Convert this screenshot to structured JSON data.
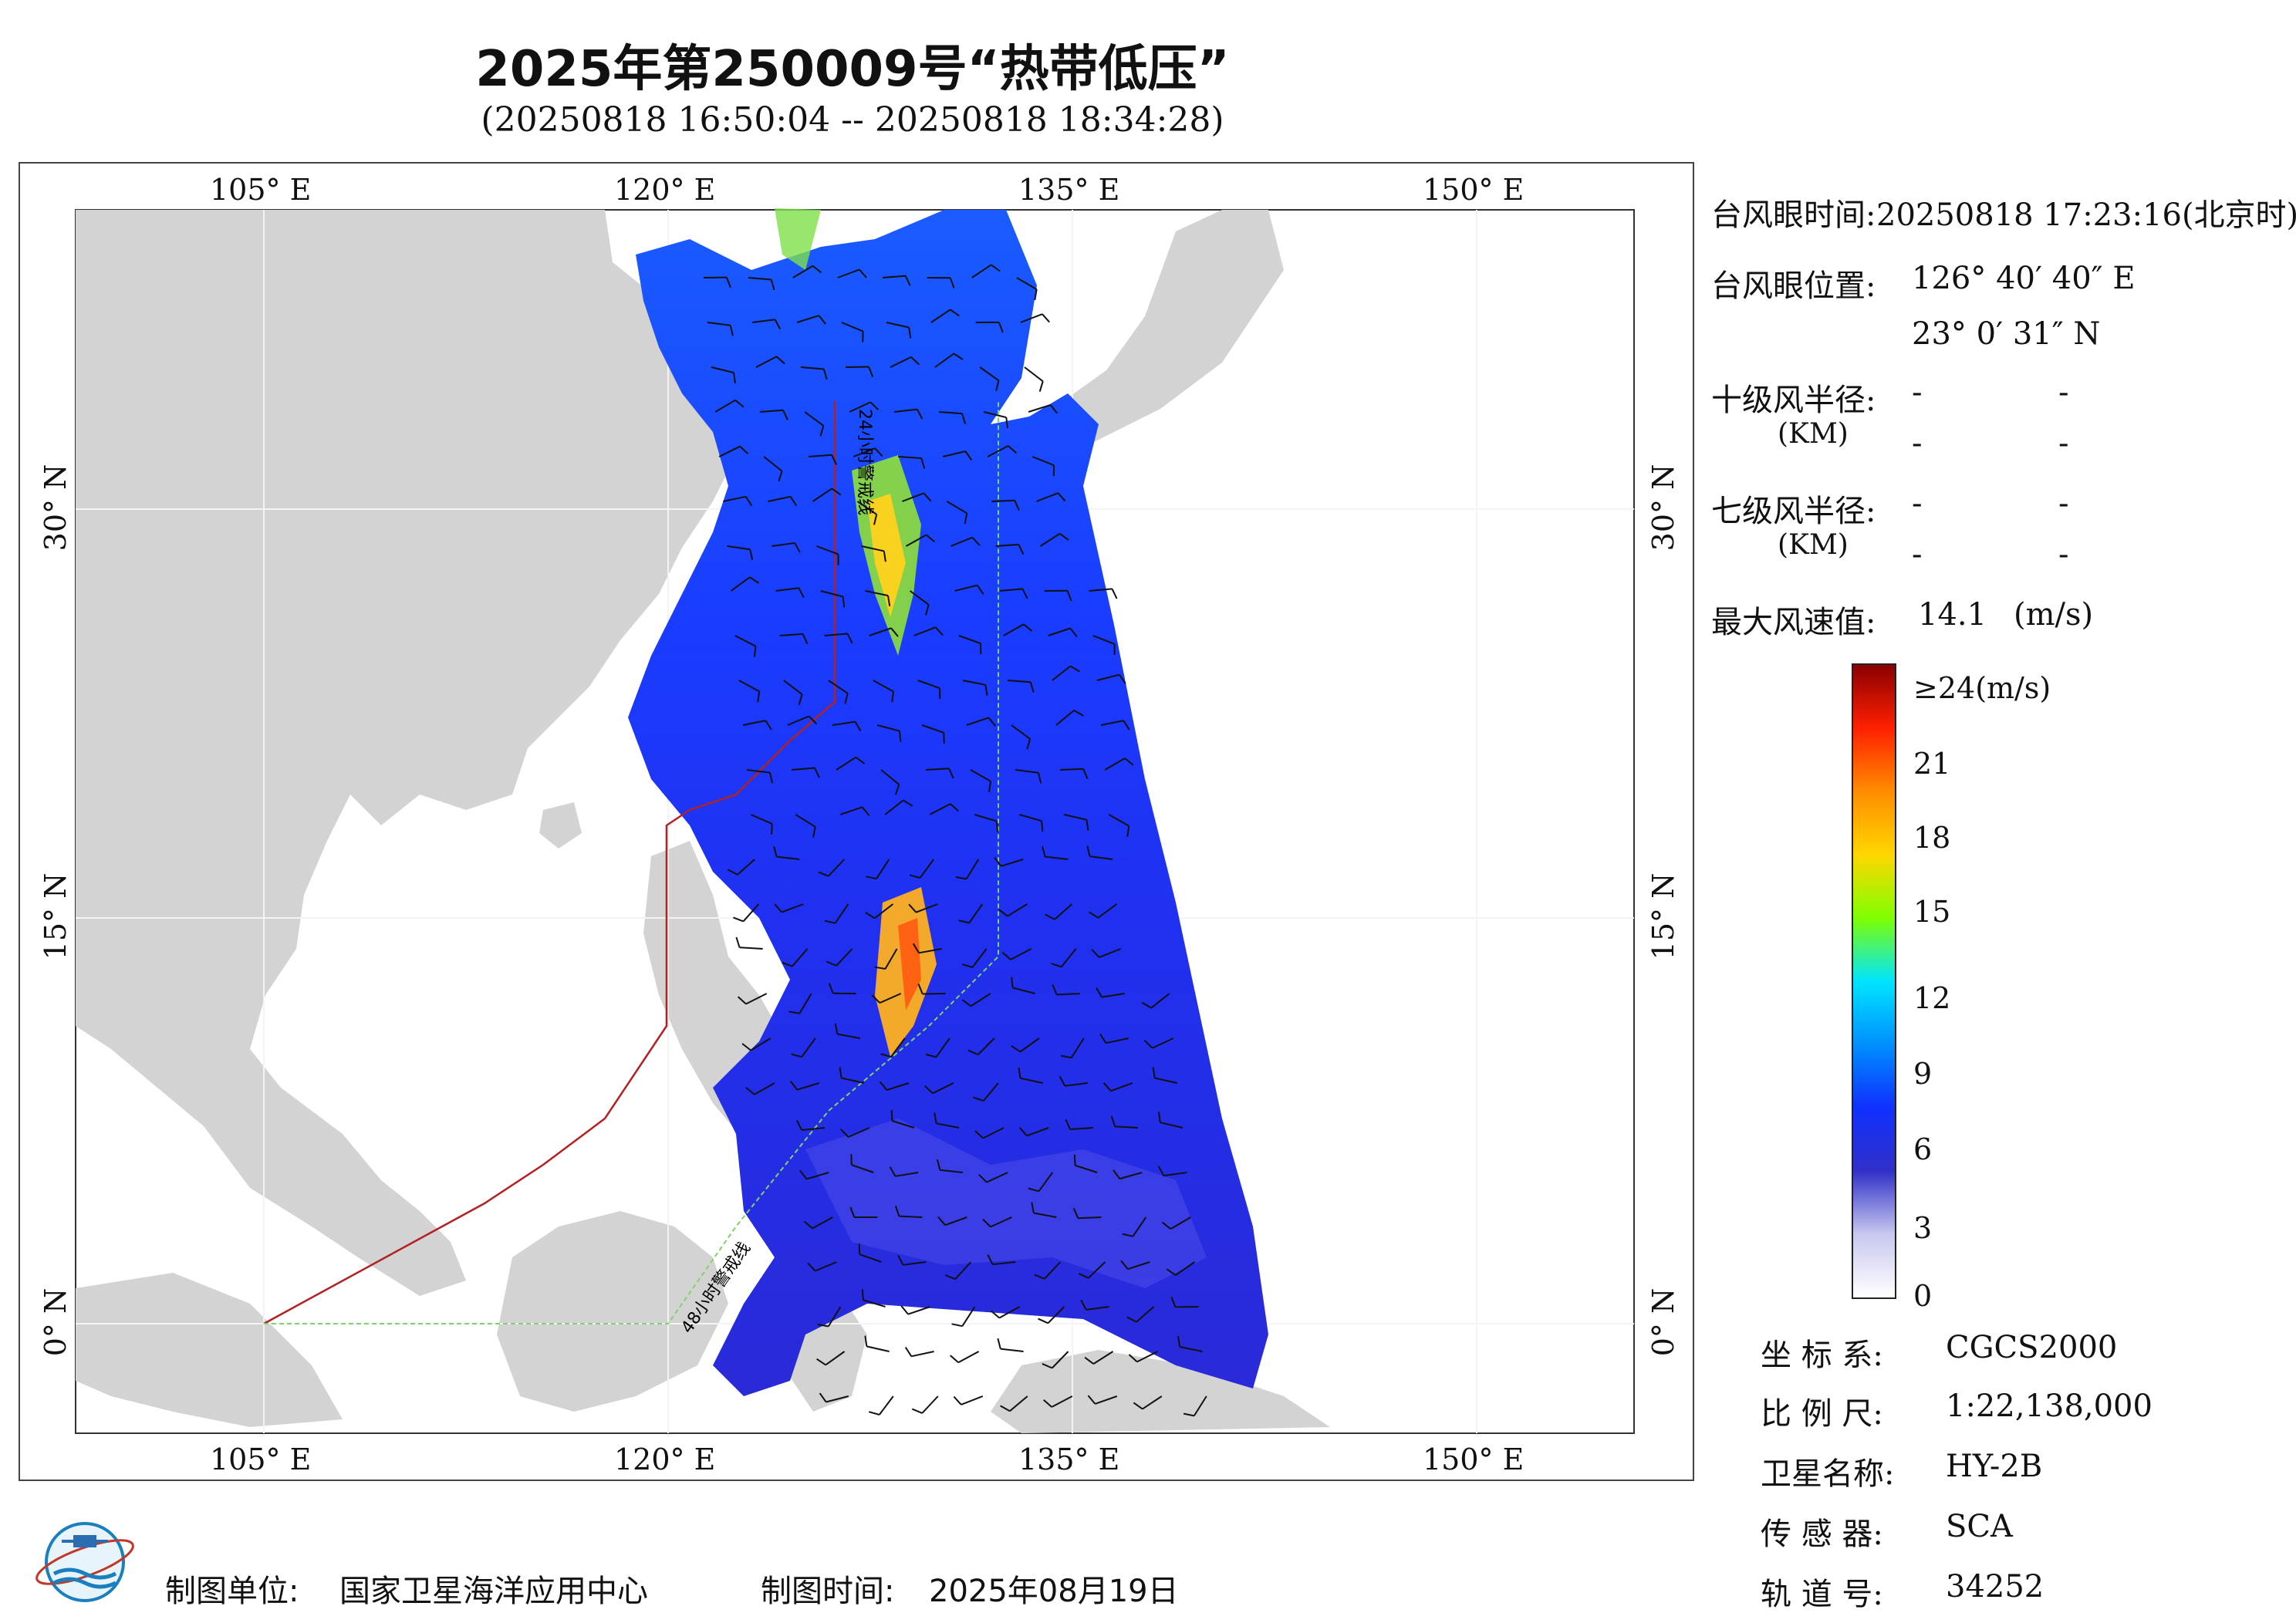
{
  "title": "2025年第250009号“热带低压”",
  "subtitle": "(20250818 16:50:04 -- 20250818 18:34:28)",
  "map": {
    "top_lon_labels": [
      "105° E",
      "120° E",
      "135° E",
      "150° E"
    ],
    "bottom_lon_labels": [
      "105° E",
      "120° E",
      "135° E",
      "150° E"
    ],
    "lat_labels": [
      "30° N",
      "15° N",
      "0° N"
    ],
    "line_24h_label": "24小时警戒线",
    "line_48h_label": "48小时警戒线",
    "line_24h_color": "#b22222",
    "line_48h_color": "#7ed36b"
  },
  "info": {
    "eye_time_label": "台风眼时间:",
    "eye_time_value": "20250818 17:23:16(北京时)",
    "eye_pos_label": "台风眼位置:",
    "eye_lon": "126° 40′ 40″ E",
    "eye_lat": "23° 0′ 31″ N",
    "r10_label": "十级风半径:",
    "r7_label": "七级风半径:",
    "km_label": "(KM)",
    "dash": "-",
    "max_wind_label": "最大风速值:",
    "max_wind_value": "14.1",
    "max_wind_unit": "(m/s)"
  },
  "colorbar": {
    "labels": [
      "≥24(m/s)",
      "21",
      "18",
      "15",
      "12",
      "9",
      "6",
      "3",
      "0"
    ],
    "colors": [
      "#8b0000",
      "#ff2000",
      "#ff8c00",
      "#ffd700",
      "#7fff00",
      "#00e5ff",
      "#0090ff",
      "#1030ff",
      "#3030c8",
      "#c8c8f0",
      "#ffffff"
    ]
  },
  "meta": {
    "coord_label": "坐 标 系:",
    "coord_value": "CGCS2000",
    "scale_label": "比 例 尺:",
    "scale_value": "1:22,138,000",
    "satellite_label": "卫星名称:",
    "satellite_value": "HY-2B",
    "sensor_label": "传 感 器:",
    "sensor_value": "SCA",
    "orbit_label": "轨 道 号:",
    "orbit_value": "34252"
  },
  "footer": {
    "unit_label": "制图单位:",
    "unit_value": "国家卫星海洋应用中心",
    "time_label": "制图时间:",
    "time_value": "2025年08月19日"
  }
}
